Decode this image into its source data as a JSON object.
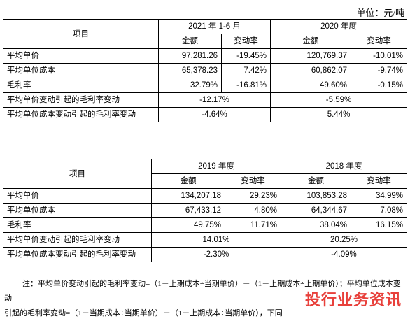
{
  "unit": "单位：元/吨",
  "table1": {
    "item_header": "项目",
    "periods": [
      "2021 年 1-6 月",
      "2020 年度"
    ],
    "subheaders": [
      "金额",
      "变动率",
      "金额",
      "变动率"
    ],
    "rows": [
      {
        "label": "平均单价",
        "cells": [
          "97,281.26",
          "-19.45%",
          "120,769.37",
          "-10.01%"
        ]
      },
      {
        "label": "平均单位成本",
        "cells": [
          "65,378.23",
          "7.42%",
          "60,862.07",
          "-9.74%"
        ]
      },
      {
        "label": "毛利率",
        "cells": [
          "32.79%",
          "-16.81%",
          "49.60%",
          "-0.15%"
        ]
      }
    ],
    "merged_rows": [
      {
        "label": "平均单价变动引起的毛利率变动",
        "cells": [
          "-12.17%",
          "-5.59%"
        ]
      },
      {
        "label": "平均单位成本变动引起的毛利率变动",
        "cells": [
          "-4.64%",
          "5.44%"
        ]
      }
    ]
  },
  "table2": {
    "item_header": "项目",
    "periods": [
      "2019 年度",
      "2018 年度"
    ],
    "subheaders": [
      "金额",
      "变动率",
      "金额",
      "变动率"
    ],
    "rows": [
      {
        "label": "平均单价",
        "cells": [
          "134,207.18",
          "29.23%",
          "103,853.28",
          "34.99%"
        ]
      },
      {
        "label": "平均单位成本",
        "cells": [
          "67,433.12",
          "4.80%",
          "64,344.67",
          "7.08%"
        ]
      },
      {
        "label": "毛利率",
        "cells": [
          "49.75%",
          "11.71%",
          "38.04%",
          "16.15%"
        ]
      }
    ],
    "merged_rows": [
      {
        "label": "平均单价变动引起的毛利率变动",
        "cells": [
          "14.01%",
          "20.25%"
        ]
      },
      {
        "label": "平均单位成本变动引起的毛利率变动",
        "cells": [
          "-2.30%",
          "-4.09%"
        ]
      }
    ]
  },
  "note": {
    "line1": "注：平均单价变动引起的毛利率变动=（1－上期成本÷当期单价）－（1－上期成本÷上期单价）；平均单位成本变动",
    "line2": "引起的毛利率变动=（1－当期成本÷当期单价）－（1－上期成本÷当期单价），下同"
  },
  "watermark": "投行业务资讯"
}
